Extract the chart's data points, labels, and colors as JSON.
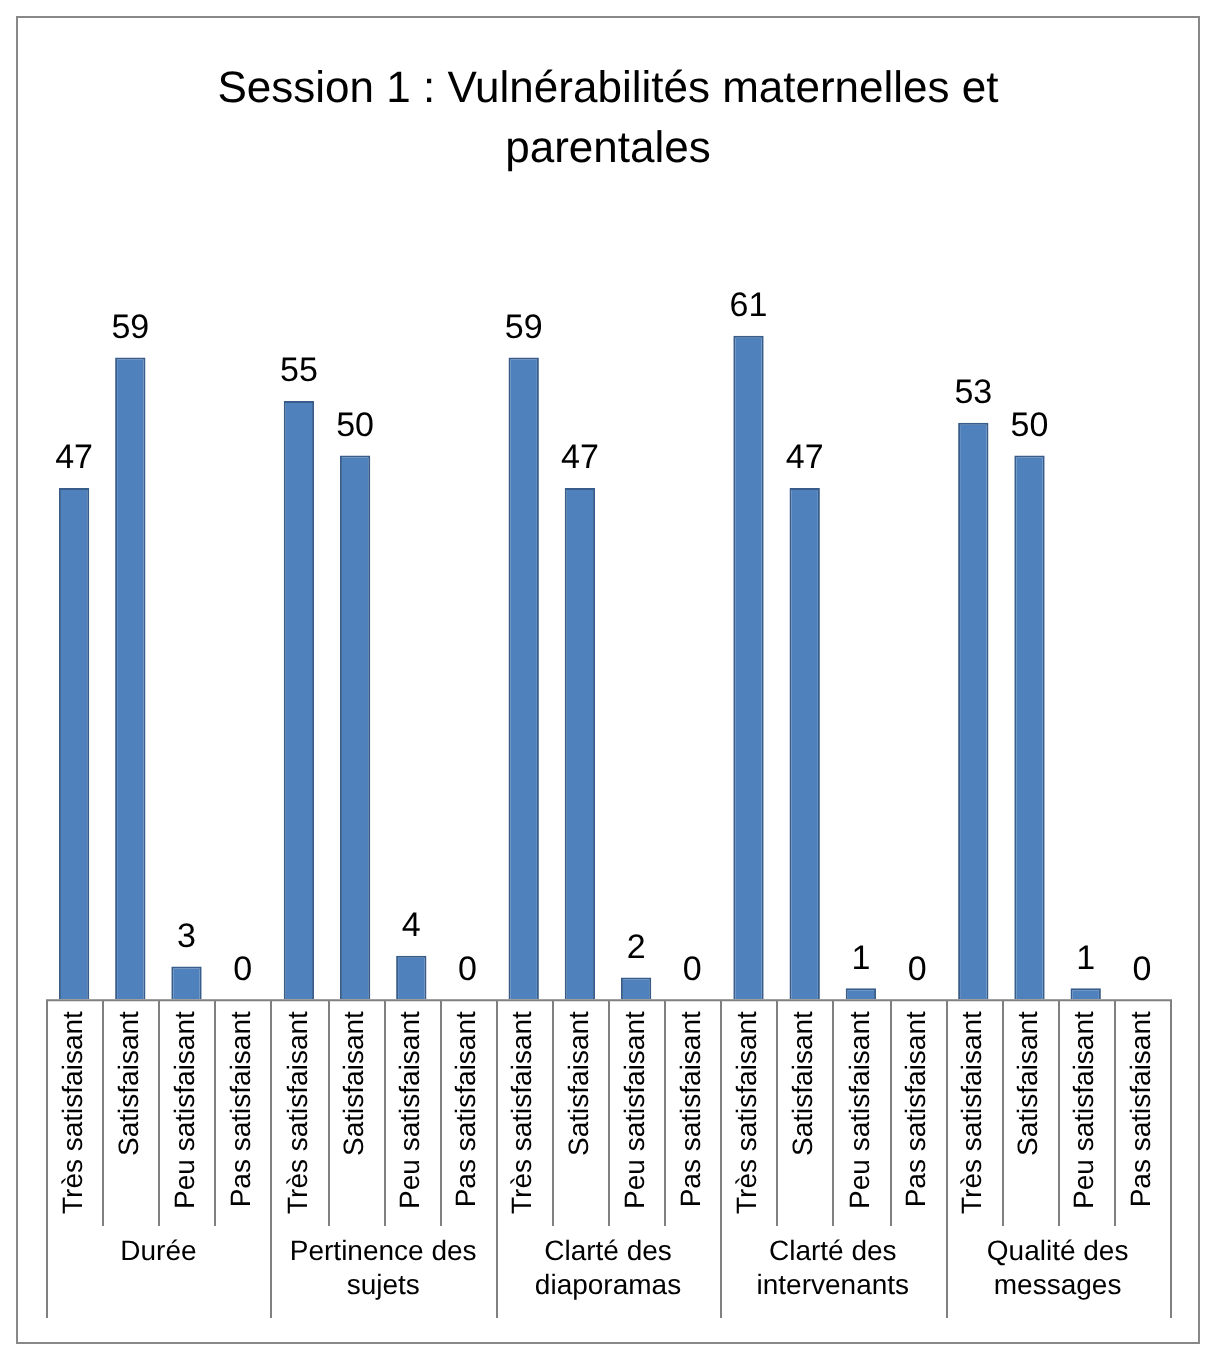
{
  "chart_data": {
    "type": "bar",
    "title": "Session 1 : Vulnérabilités maternelles et parentales",
    "categories": [
      "Très satisfaisant",
      "Satisfaisant",
      "Peu satisfaisant",
      "Pas satisfaisant",
      "Très satisfaisant",
      "Satisfaisant",
      "Peu satisfaisant",
      "Pas satisfaisant",
      "Très satisfaisant",
      "Satisfaisant",
      "Peu satisfaisant",
      "Pas satisfaisant",
      "Très satisfaisant",
      "Satisfaisant",
      "Peu satisfaisant",
      "Pas satisfaisant",
      "Très satisfaisant",
      "Satisfaisant",
      "Peu satisfaisant",
      "Pas satisfaisant"
    ],
    "values": [
      47,
      59,
      3,
      0,
      55,
      50,
      4,
      0,
      59,
      47,
      2,
      0,
      61,
      47,
      1,
      0,
      53,
      50,
      1,
      0
    ],
    "color": "#4f81bd",
    "data_labels": true,
    "legend": false,
    "grid": false,
    "annotations": [
      "Durée",
      "Pertinence des sujets",
      "Clarté des diaporamas",
      "Clarté des intervenants",
      "Qualité des messages"
    ]
  }
}
